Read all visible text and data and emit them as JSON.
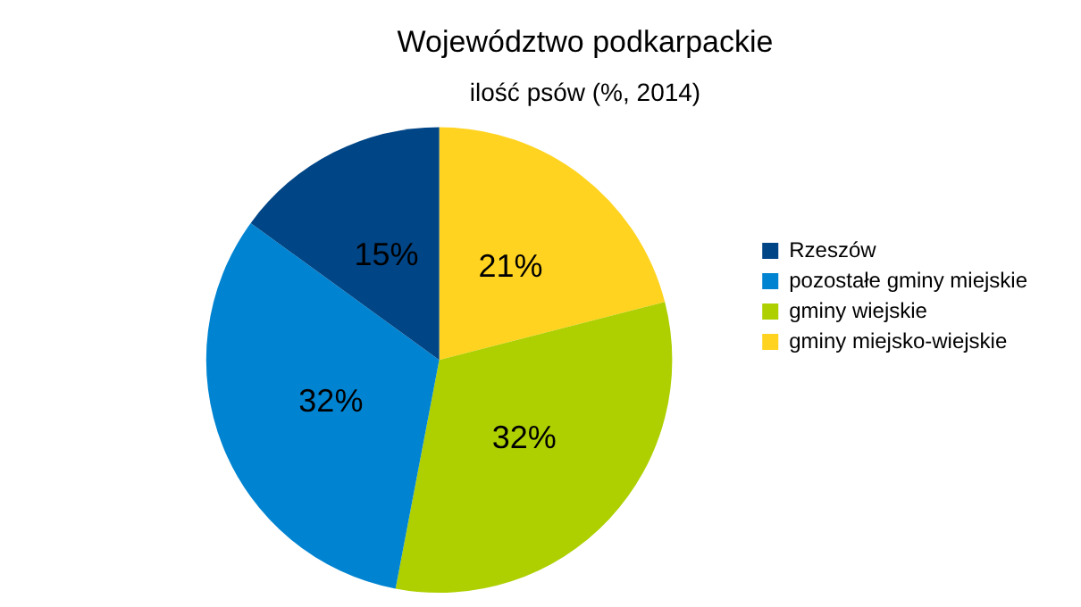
{
  "chart_data": {
    "type": "pie",
    "title": "Województwo podkarpackie",
    "subtitle": "ilość psów (%, 2014)",
    "categories": [
      "Rzeszów",
      "pozostałe gminy miejskie",
      "gminy wiejskie",
      "gminy miejsko-wiejskie"
    ],
    "values": [
      15,
      32,
      32,
      21
    ],
    "colors": [
      "#004586",
      "#0084d1",
      "#aecf00",
      "#ffd320"
    ],
    "value_labels": [
      "15%",
      "32%",
      "32%",
      "21%"
    ],
    "legend": "right"
  }
}
